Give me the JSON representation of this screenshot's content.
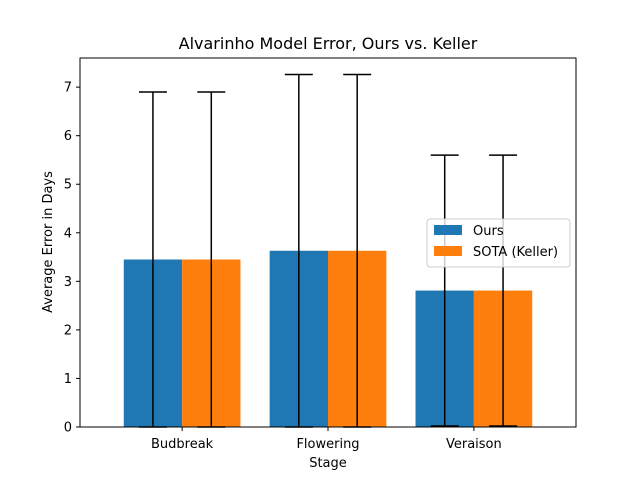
{
  "chart_data": {
    "type": "bar",
    "title": "Alvarinho Model Error, Ours vs. Keller",
    "xlabel": "Stage",
    "ylabel": "Average Error in Days",
    "categories": [
      "Budbreak",
      "Flowering",
      "Veraison"
    ],
    "series": [
      {
        "name": "Ours",
        "color": "#1f77b4",
        "values": [
          3.45,
          3.63,
          2.81
        ],
        "error": [
          3.45,
          3.63,
          2.79
        ]
      },
      {
        "name": "SOTA (Keller)",
        "color": "#ff7f0e",
        "values": [
          3.45,
          3.63,
          2.81
        ],
        "error": [
          3.45,
          3.63,
          2.79
        ]
      }
    ],
    "ylim": [
      0,
      7.6
    ],
    "yticks": [
      0,
      1,
      2,
      3,
      4,
      5,
      6,
      7
    ],
    "grid": false,
    "legend_position": "center-right"
  }
}
